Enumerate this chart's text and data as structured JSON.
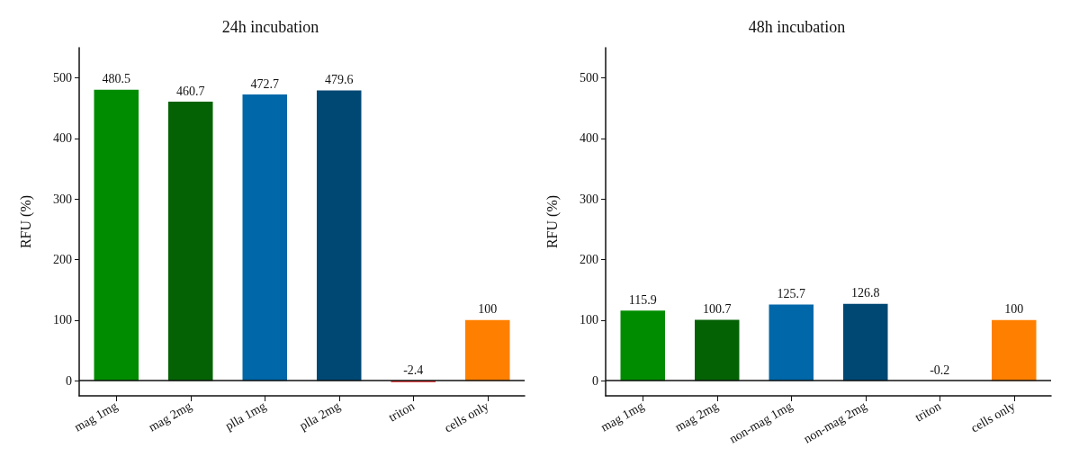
{
  "chart_data": [
    {
      "type": "bar",
      "title": "24h incubation",
      "ylabel": "RFU (%)",
      "categories": [
        "mag 1mg",
        "mag 2mg",
        "plla 1mg",
        "plla 2mg",
        "triton",
        "cells only"
      ],
      "values": [
        480.5,
        460.7,
        472.7,
        479.6,
        -2.4,
        100
      ],
      "colors": [
        "#008c00",
        "#046204",
        "#0067a8",
        "#004874",
        "#e01010",
        "#ff8000"
      ],
      "data_labels": true,
      "ylim": [
        -25,
        550
      ],
      "yticks": [
        0,
        100,
        200,
        300,
        400,
        500
      ],
      "ref_lines": [
        {
          "axis": "y",
          "value": 0
        }
      ]
    },
    {
      "type": "bar",
      "title": "48h incubation",
      "ylabel": "RFU (%)",
      "categories": [
        "mag 1mg",
        "mag 2mg",
        "non-mag 1mg",
        "non-mag 2mg",
        "triton",
        "cells only"
      ],
      "values": [
        115.9,
        100.7,
        125.7,
        126.8,
        -0.2,
        100
      ],
      "colors": [
        "#008c00",
        "#046204",
        "#0067a8",
        "#004874",
        "#e01010",
        "#ff8000"
      ],
      "data_labels": true,
      "ylim": [
        -25,
        550
      ],
      "yticks": [
        0,
        100,
        200,
        300,
        400,
        500
      ],
      "ref_lines": [
        {
          "axis": "y",
          "value": 0
        }
      ]
    }
  ]
}
